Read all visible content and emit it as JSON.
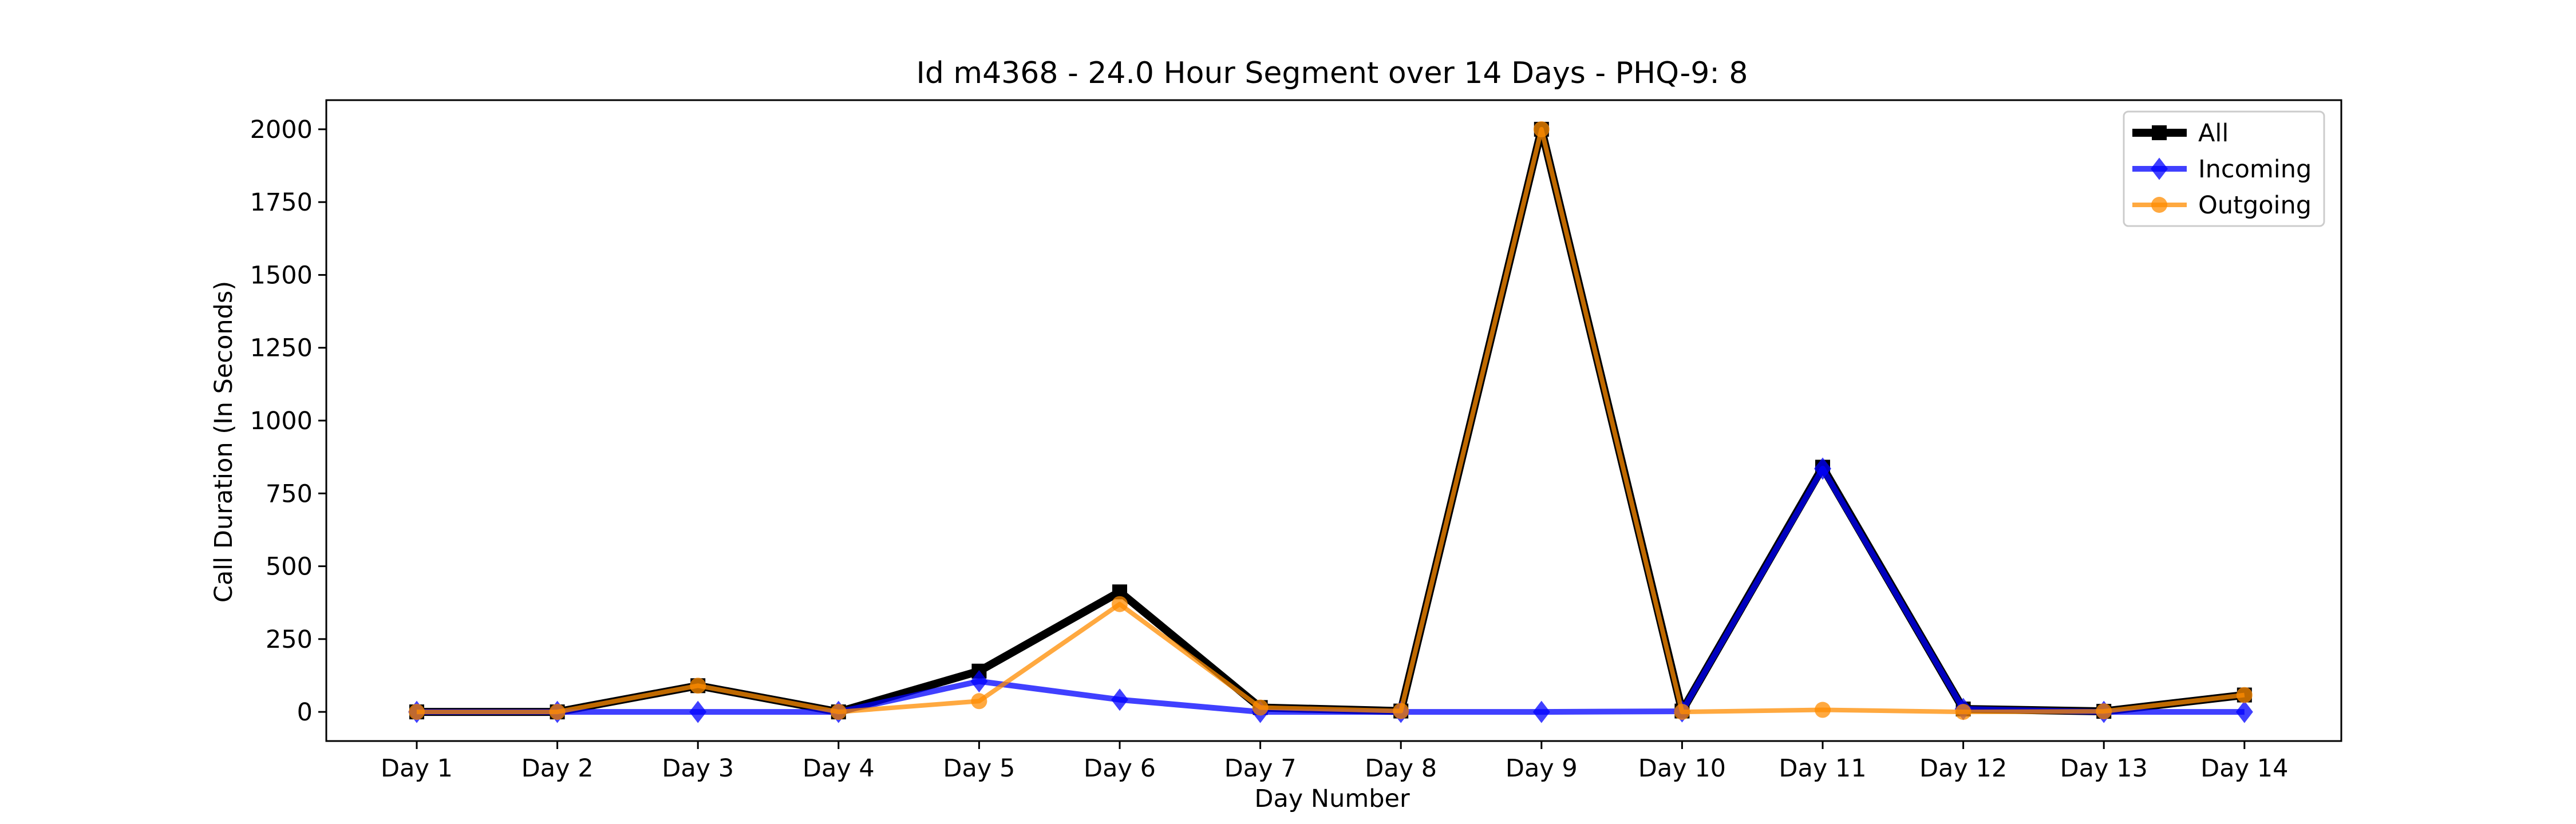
{
  "chart_data": {
    "type": "line",
    "title": "Id m4368 - 24.0 Hour Segment over 14 Days - PHQ-9: 8",
    "xlabel": "Day Number",
    "ylabel": "Call Duration (In Seconds)",
    "categories": [
      "Day 1",
      "Day 2",
      "Day 3",
      "Day 4",
      "Day 5",
      "Day 6",
      "Day 7",
      "Day 8",
      "Day 9",
      "Day 10",
      "Day 11",
      "Day 12",
      "Day 13",
      "Day 14"
    ],
    "ylim": [
      -100,
      2100
    ],
    "yticks": [
      0,
      250,
      500,
      750,
      1000,
      1250,
      1500,
      1750,
      2000
    ],
    "grid": false,
    "legend_position": "top-right",
    "series": [
      {
        "name": "All",
        "color": "#000000",
        "marker": "square",
        "values": [
          0,
          0,
          90,
          0,
          140,
          412,
          15,
          3,
          2000,
          3,
          840,
          10,
          2,
          58
        ]
      },
      {
        "name": "Incoming",
        "color": "#0000ff",
        "marker": "diamond",
        "values": [
          0,
          0,
          0,
          0,
          105,
          42,
          0,
          0,
          0,
          2,
          835,
          10,
          0,
          0
        ]
      },
      {
        "name": "Outgoing",
        "color": "#ff8c00",
        "marker": "circle",
        "values": [
          0,
          0,
          90,
          0,
          37,
          370,
          15,
          3,
          2000,
          0,
          7,
          0,
          2,
          58
        ]
      }
    ]
  }
}
